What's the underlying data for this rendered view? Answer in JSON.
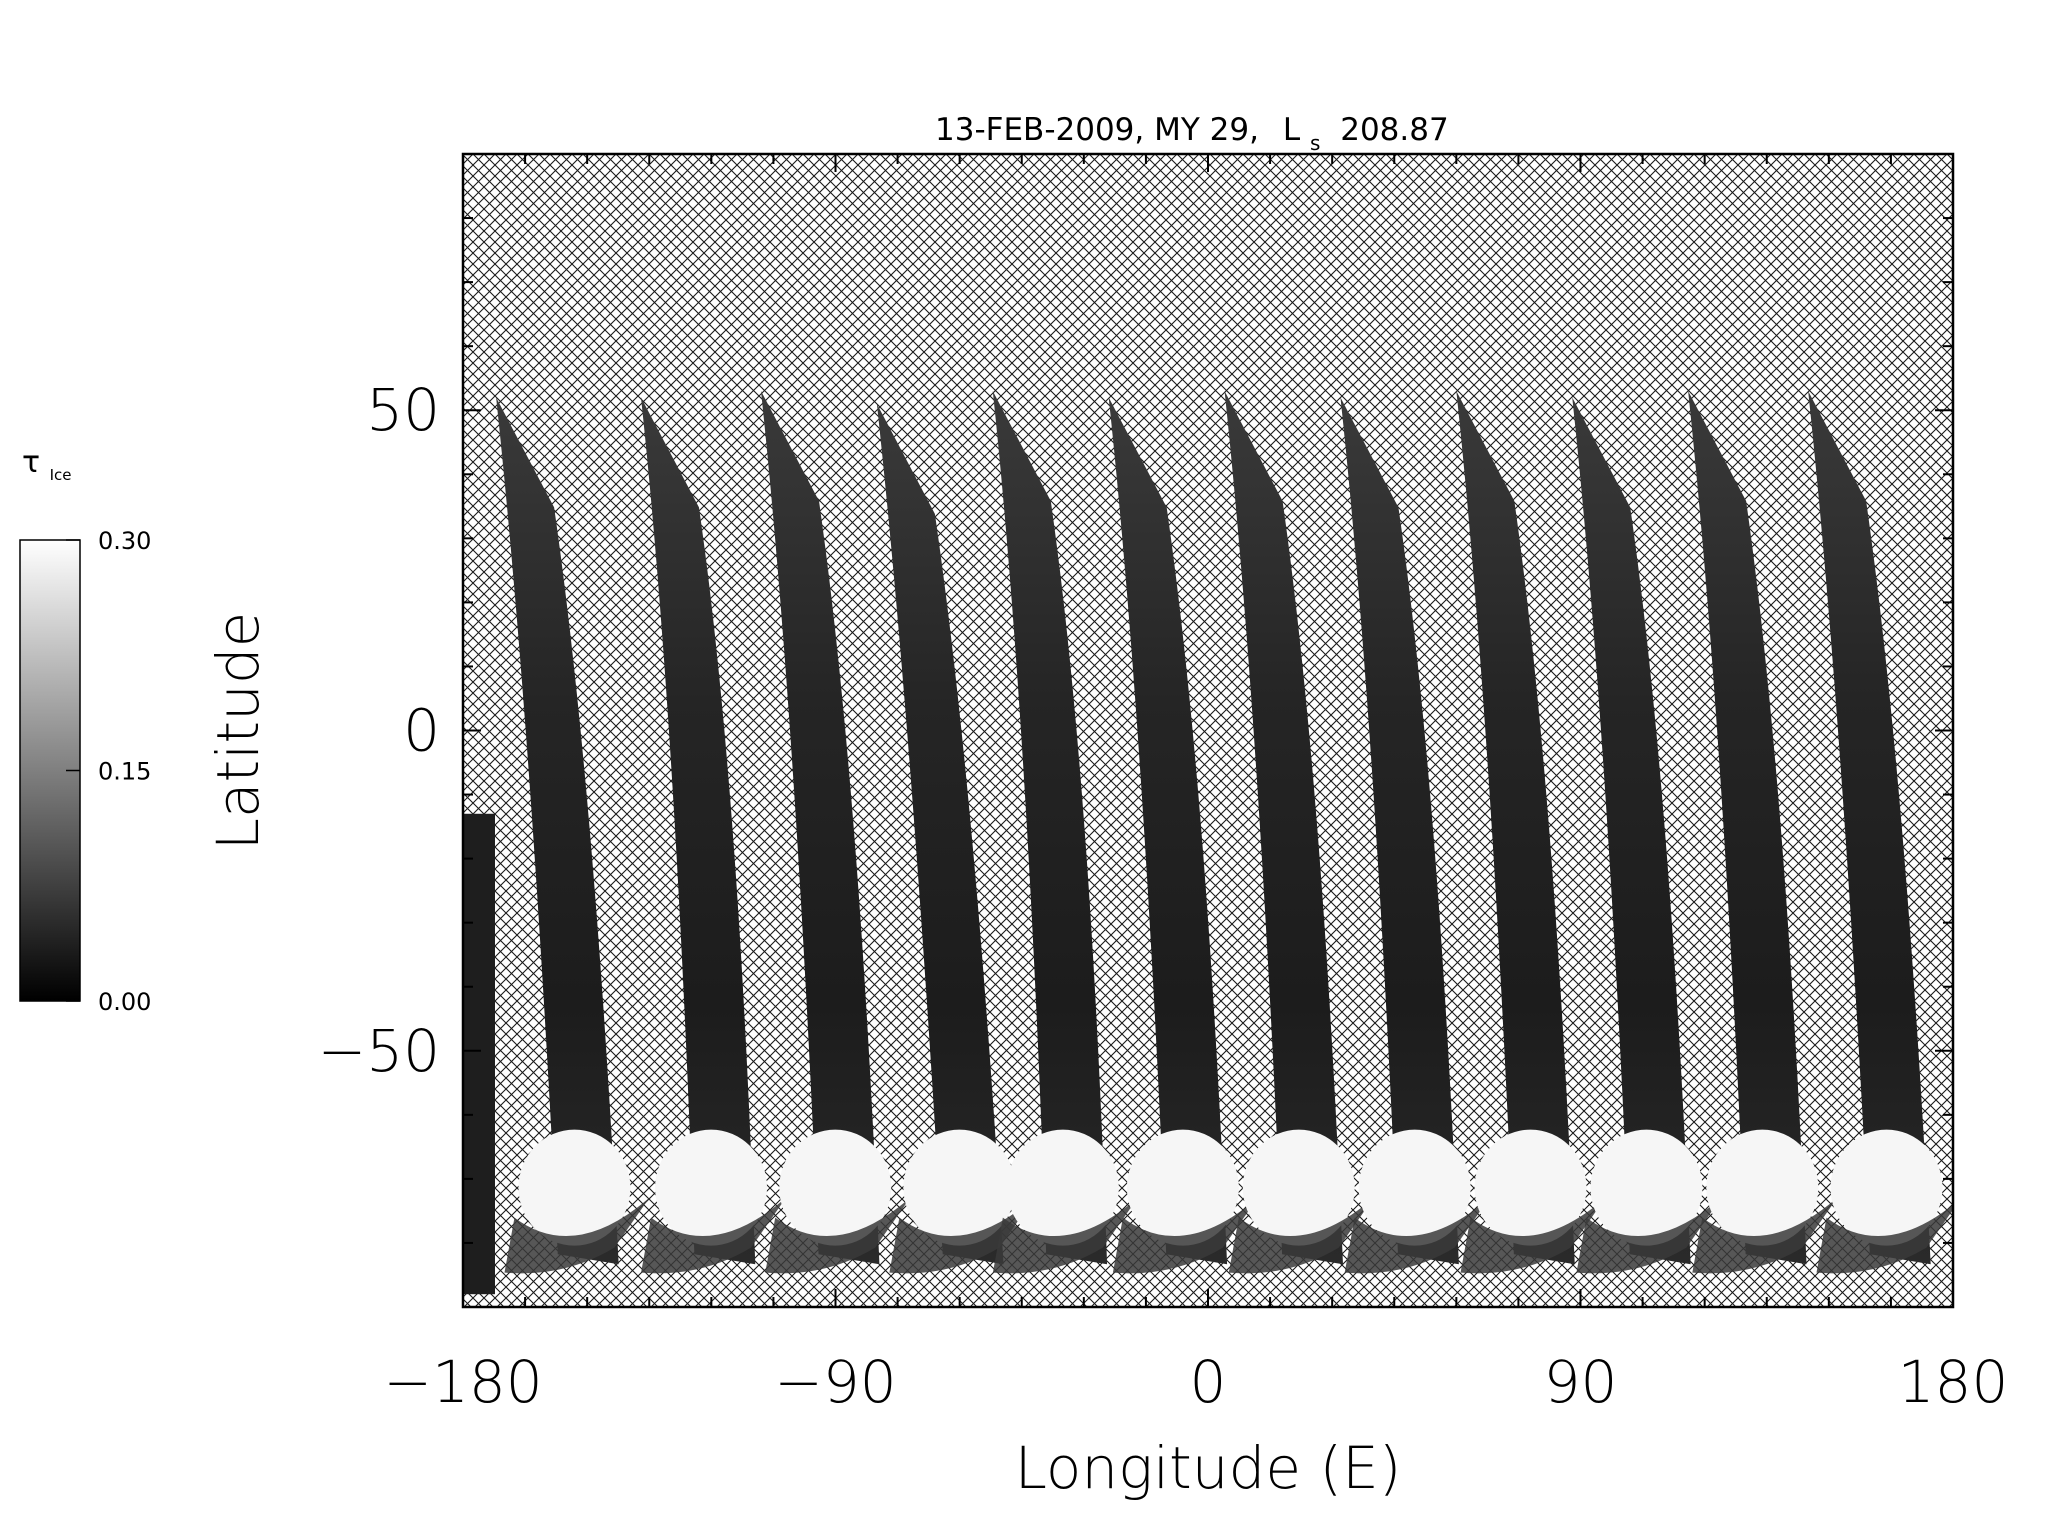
{
  "chart_data": {
    "type": "heatmap",
    "title": {
      "date": "13-FEB-2009, MY 29,",
      "ls_symbol": "L",
      "ls_sub": "s",
      "ls_value": "208.87"
    },
    "xlabel": "Longitude (E)",
    "ylabel": "Latitude",
    "xlim": [
      -180,
      180
    ],
    "ylim": [
      -90,
      90
    ],
    "xticks": [
      {
        "value": -180,
        "label": "−180"
      },
      {
        "value": -90,
        "label": "−90"
      },
      {
        "value": 0,
        "label": "0"
      },
      {
        "value": 90,
        "label": "90"
      },
      {
        "value": 180,
        "label": "180"
      }
    ],
    "yticks": [
      {
        "value": 50,
        "label": "50"
      },
      {
        "value": 0,
        "label": "0"
      },
      {
        "value": -50,
        "label": "−50"
      }
    ],
    "colorbar": {
      "label": "τ",
      "label_sub": "Ice",
      "min": 0.0,
      "max": 0.3,
      "ticks": [
        {
          "value": 0.3,
          "label": "0.30"
        },
        {
          "value": 0.15,
          "label": "0.15"
        },
        {
          "value": 0.0,
          "label": "0.00"
        }
      ],
      "colors": [
        "#000000",
        "#ffffff"
      ]
    },
    "no_data_fill": "crosshatch",
    "polar_cap_edge_latitude": -62,
    "swaths": [
      {
        "top_lon": -172,
        "top_lat": 52,
        "bottom_lon": -155,
        "bottom_lat": -88
      },
      {
        "top_lon": -137,
        "top_lat": 52,
        "bottom_lon": -122,
        "bottom_lat": -88
      },
      {
        "top_lon": -108,
        "top_lat": 53,
        "bottom_lon": -92,
        "bottom_lat": -88
      },
      {
        "top_lon": -80,
        "top_lat": 51,
        "bottom_lon": -62,
        "bottom_lat": -88
      },
      {
        "top_lon": -52,
        "top_lat": 53,
        "bottom_lon": -37,
        "bottom_lat": -88
      },
      {
        "top_lon": -24,
        "top_lat": 52,
        "bottom_lon": -8,
        "bottom_lat": -88
      },
      {
        "top_lon": 4,
        "top_lat": 53,
        "bottom_lon": 20,
        "bottom_lat": -88
      },
      {
        "top_lon": 32,
        "top_lat": 52,
        "bottom_lon": 48,
        "bottom_lat": -88
      },
      {
        "top_lon": 60,
        "top_lat": 53,
        "bottom_lon": 76,
        "bottom_lat": -88
      },
      {
        "top_lon": 88,
        "top_lat": 52,
        "bottom_lon": 104,
        "bottom_lat": -88
      },
      {
        "top_lon": 116,
        "top_lat": 53,
        "bottom_lon": 132,
        "bottom_lat": -88
      },
      {
        "top_lon": 145,
        "top_lat": 53,
        "bottom_lon": 162,
        "bottom_lat": -88
      }
    ]
  }
}
